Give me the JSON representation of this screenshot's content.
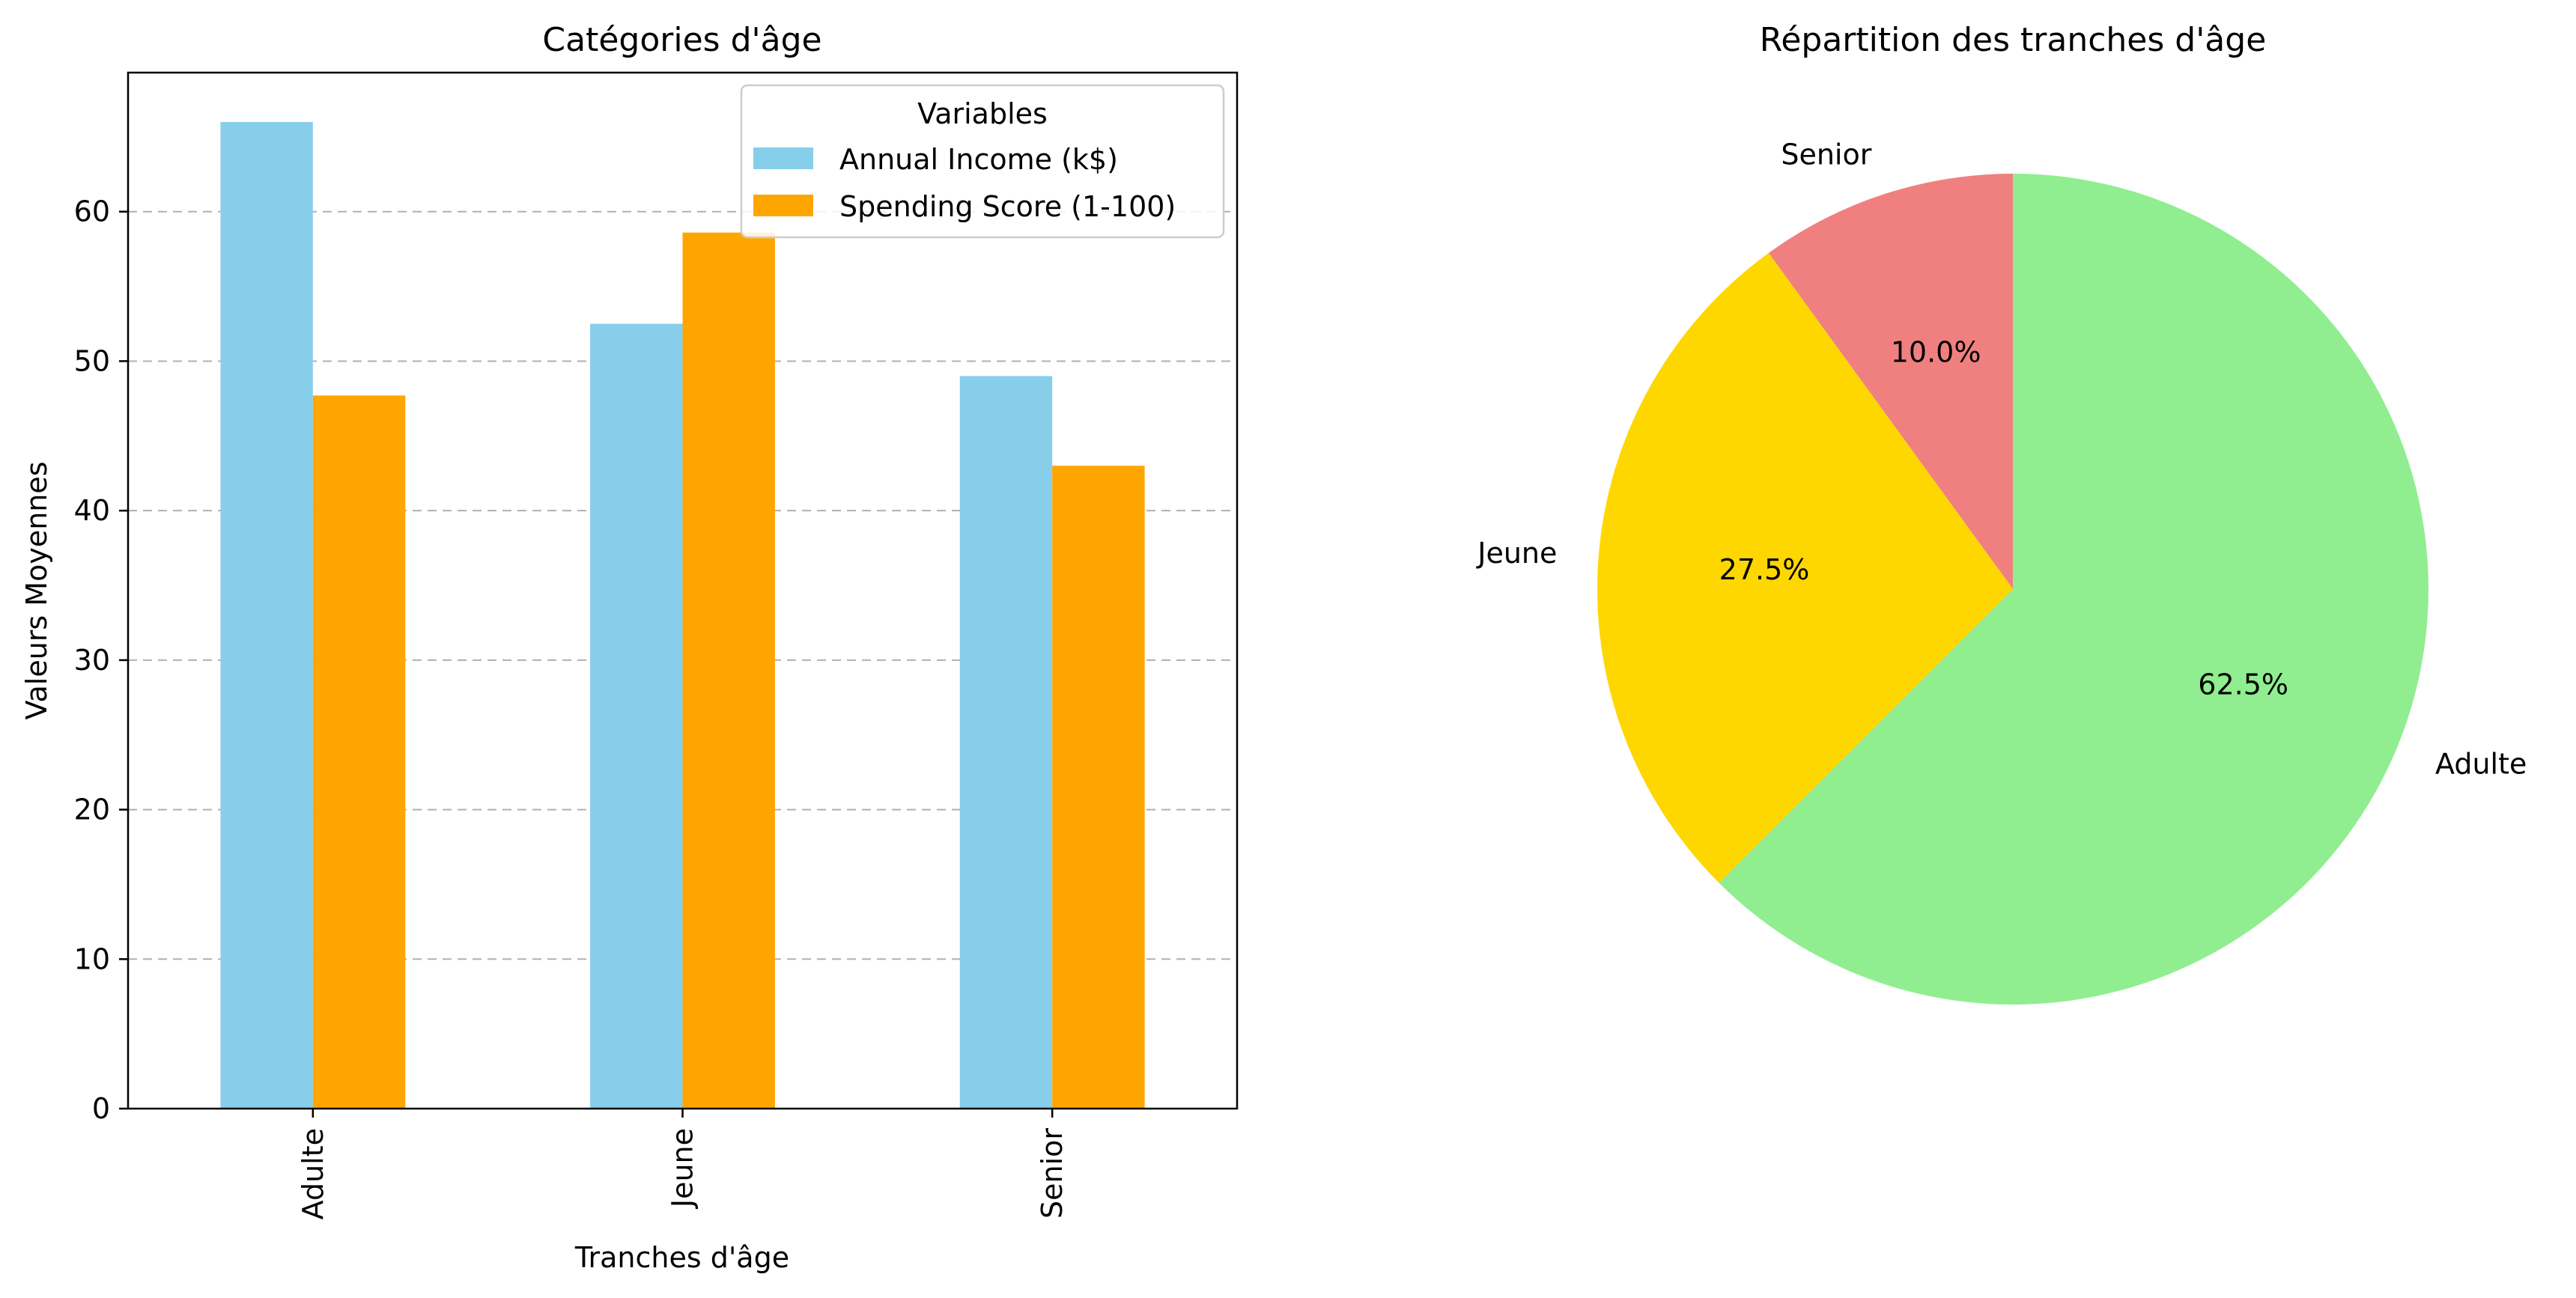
{
  "chart_data": [
    {
      "type": "bar",
      "title": "Catégories d'âge",
      "xlabel": "Tranches d'âge",
      "ylabel": "Valeurs Moyennes",
      "categories": [
        "Adulte",
        "Jeune",
        "Senior"
      ],
      "series": [
        {
          "name": "Annual Income (k$)",
          "color": "#87CEEB",
          "values": [
            66.0,
            52.5,
            49.0
          ]
        },
        {
          "name": "Spending Score (1-100)",
          "color": "#FFA500",
          "values": [
            47.7,
            58.6,
            43.0
          ]
        }
      ],
      "ylim": [
        0,
        69.3
      ],
      "yticks": [
        "0",
        "10",
        "20",
        "30",
        "40",
        "50",
        "60"
      ],
      "grid": true,
      "legend": {
        "title": "Variables",
        "placement": "top-right"
      }
    },
    {
      "type": "pie",
      "title": "Répartition des tranches d'âge",
      "labels": [
        "Senior",
        "Jeune",
        "Adulte"
      ],
      "values": [
        10.0,
        27.5,
        62.5
      ],
      "percent_labels": [
        "10.0%",
        "27.5%",
        "62.5%"
      ],
      "colors": [
        "#F08080",
        "#FFD700",
        "#90EE90"
      ]
    }
  ]
}
